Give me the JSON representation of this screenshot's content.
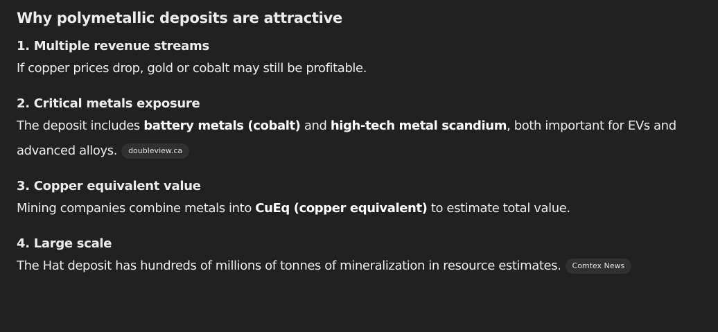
{
  "title": "Why polymetallic deposits are attractive",
  "sections": [
    {
      "heading": "1. Multiple revenue streams",
      "text": "If copper prices drop, gold or cobalt may still be profitable."
    },
    {
      "heading": "2. Critical metals exposure",
      "t1": "The deposit includes ",
      "b1": "battery metals (cobalt)",
      "t2": " and ",
      "b2": "high-tech metal scandium",
      "t3": ", both important for EVs and advanced alloys.",
      "source": "doubleview.ca"
    },
    {
      "heading": "3. Copper equivalent value",
      "t1": "Mining companies combine metals into ",
      "b1": "CuEq (copper equivalent)",
      "t2": " to estimate total value."
    },
    {
      "heading": "4. Large scale",
      "text": "The Hat deposit has hundreds of millions of tonnes of mineralization in resource estimates.",
      "source": "Comtex News"
    }
  ]
}
